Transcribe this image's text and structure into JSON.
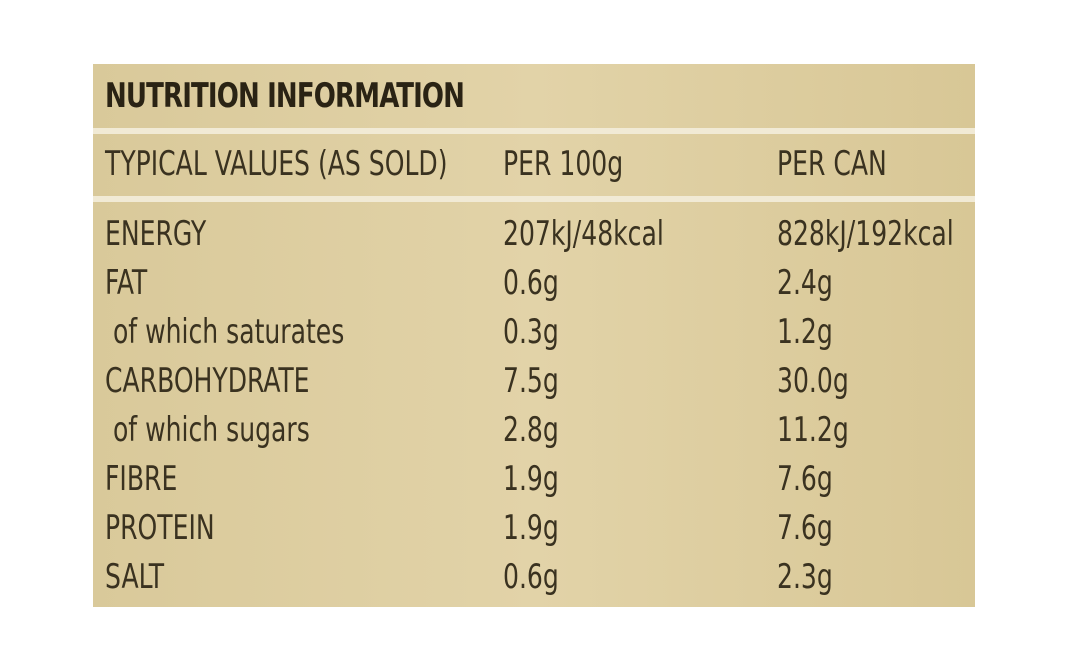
{
  "title": "NUTRITION INFORMATION",
  "table": {
    "header": [
      "TYPICAL VALUES (AS SOLD)",
      "PER 100g",
      "PER CAN"
    ],
    "rows": [
      [
        "ENERGY",
        "207kJ/48kcal",
        "828kJ/192kcal"
      ],
      [
        "FAT",
        "0.6g",
        "2.4g"
      ],
      [
        " of which saturates",
        "0.3g",
        "1.2g"
      ],
      [
        "CARBOHYDRATE",
        "7.5g",
        "30.0g"
      ],
      [
        " of which sugars",
        "2.8g",
        "11.2g"
      ],
      [
        "FIBRE",
        "1.9g",
        "7.6g"
      ],
      [
        "PROTEIN",
        "1.9g",
        "7.6g"
      ],
      [
        "SALT",
        "0.6g",
        "2.3g"
      ]
    ]
  }
}
